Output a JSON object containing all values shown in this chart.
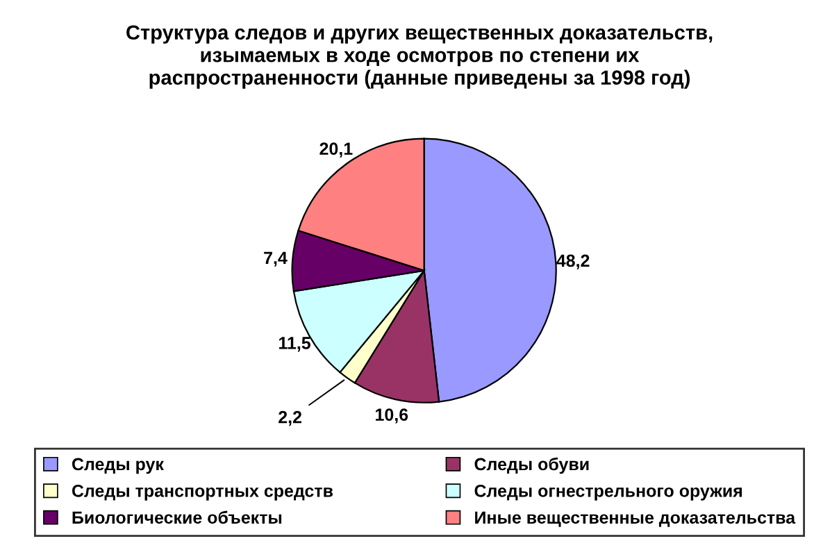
{
  "chart_data": {
    "type": "pie",
    "title": "Структура следов и других вещественных доказательств,\nизымаемых в ходе осмотров по степени их\nраспространенности (данные приведены за 1998 год)",
    "categories": [
      "Следы рук",
      "Следы обуви",
      "Следы транспортных средств",
      "Следы огнестрельного оружия",
      "Биологические объекты",
      "Иные вещественные доказательства"
    ],
    "values": [
      48.2,
      10.6,
      2.2,
      11.5,
      7.4,
      20.1
    ],
    "value_labels": [
      "48,2",
      "10,6",
      "2,2",
      "11,5",
      "7,4",
      "20,1"
    ],
    "colors": [
      "#9999ff",
      "#993366",
      "#ffffcc",
      "#ccffff",
      "#660066",
      "#ff8080"
    ],
    "legend": "bottom"
  }
}
